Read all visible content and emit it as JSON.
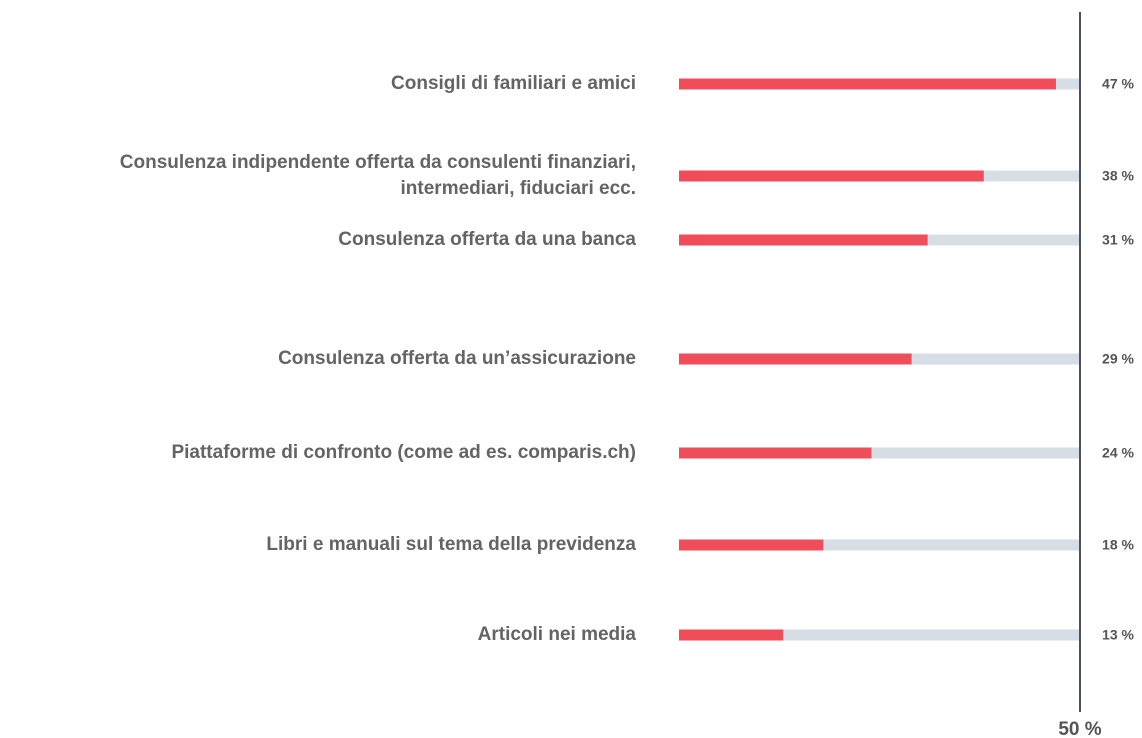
{
  "chart_data": {
    "type": "bar",
    "orientation": "horizontal",
    "categories": [
      "Consigli di familiari e amici",
      "Consulenza indipendente offerta da consulenti finanziari,\nintermediari, fiduciari ecc.",
      "Consulenza offerta da una banca",
      "Consulenza offerta da un’assicurazione",
      "Piattaforme di confronto (come ad es. comparis.ch)",
      "Libri e manuali sul tema della previdenza",
      "Articoli nei media"
    ],
    "values": [
      47,
      38,
      31,
      29,
      24,
      18,
      13
    ],
    "value_labels": [
      "47 %",
      "38 %",
      "31 %",
      "29 %",
      "24 %",
      "18 %",
      "13 %"
    ],
    "color": "#f04d5a",
    "track_color": "#d5dde5",
    "xlim": [
      0,
      50
    ],
    "xticks": [
      {
        "value": 50,
        "label": "50 %"
      }
    ]
  }
}
